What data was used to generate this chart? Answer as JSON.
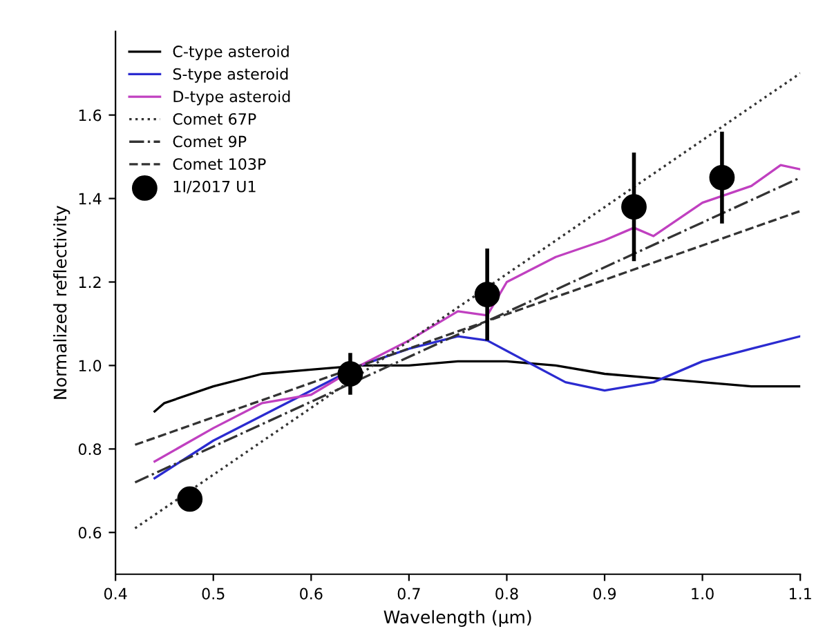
{
  "chart_data": {
    "type": "line",
    "xlabel": "Wavelength (μm)",
    "ylabel": "Normalized reflectivity",
    "xlim": [
      0.4,
      1.1
    ],
    "ylim": [
      0.5,
      1.8
    ],
    "xticks": [
      0.4,
      0.5,
      0.6,
      0.7,
      0.8,
      0.9,
      {
        "value": 1.0,
        "label": "1.0"
      },
      1.1
    ],
    "yticks": [
      0.6,
      0.8,
      {
        "value": 1.0,
        "label": "1.0"
      },
      1.2,
      1.4,
      1.6
    ],
    "grid": false,
    "legend": "top left",
    "series": [
      {
        "name": "C-type asteroid",
        "color": "#000000",
        "line_style": "solid",
        "x": [
          0.44,
          0.45,
          0.5,
          0.55,
          0.6,
          0.65,
          0.7,
          0.75,
          0.8,
          0.85,
          0.9,
          0.95,
          1.0,
          1.05,
          1.1
        ],
        "values": [
          0.89,
          0.91,
          0.95,
          0.98,
          0.99,
          1.0,
          1.0,
          1.01,
          1.01,
          1.0,
          0.98,
          0.97,
          0.96,
          0.95,
          0.95
        ]
      },
      {
        "name": "S-type asteroid",
        "color": "#2b2bd0",
        "line_style": "solid",
        "x": [
          0.44,
          0.5,
          0.55,
          0.6,
          0.65,
          0.7,
          0.75,
          0.78,
          0.82,
          0.86,
          0.9,
          0.95,
          1.0,
          1.05,
          1.1
        ],
        "values": [
          0.73,
          0.82,
          0.88,
          0.94,
          1.0,
          1.04,
          1.07,
          1.06,
          1.01,
          0.96,
          0.94,
          0.96,
          1.01,
          1.04,
          1.07
        ]
      },
      {
        "name": "D-type asteroid",
        "color": "#c040c0",
        "line_style": "solid",
        "x": [
          0.44,
          0.5,
          0.55,
          0.6,
          0.65,
          0.7,
          0.75,
          0.78,
          0.8,
          0.85,
          0.9,
          0.93,
          0.95,
          1.0,
          1.05,
          1.08,
          1.1
        ],
        "values": [
          0.77,
          0.85,
          0.91,
          0.93,
          1.0,
          1.06,
          1.13,
          1.12,
          1.2,
          1.26,
          1.3,
          1.33,
          1.31,
          1.39,
          1.43,
          1.48,
          1.47
        ]
      },
      {
        "name": "Comet 67P",
        "color": "#333333",
        "line_style": "dotted",
        "x": [
          0.42,
          1.1
        ],
        "values": [
          0.61,
          1.7
        ]
      },
      {
        "name": "Comet 9P",
        "color": "#333333",
        "line_style": "dashdot",
        "x": [
          0.42,
          1.1
        ],
        "values": [
          0.72,
          1.45
        ]
      },
      {
        "name": "Comet 103P",
        "color": "#333333",
        "line_style": "dashed",
        "x": [
          0.42,
          1.1
        ],
        "values": [
          0.81,
          1.37
        ]
      },
      {
        "name": "1I/2017 U1",
        "type": "scatter",
        "marker": "circle",
        "color": "#000000",
        "x": [
          0.476,
          0.64,
          0.78,
          0.93,
          1.02
        ],
        "values": [
          0.68,
          0.98,
          1.17,
          1.38,
          1.45
        ],
        "errors": [
          null,
          0.05,
          0.11,
          0.13,
          0.11
        ]
      }
    ]
  }
}
